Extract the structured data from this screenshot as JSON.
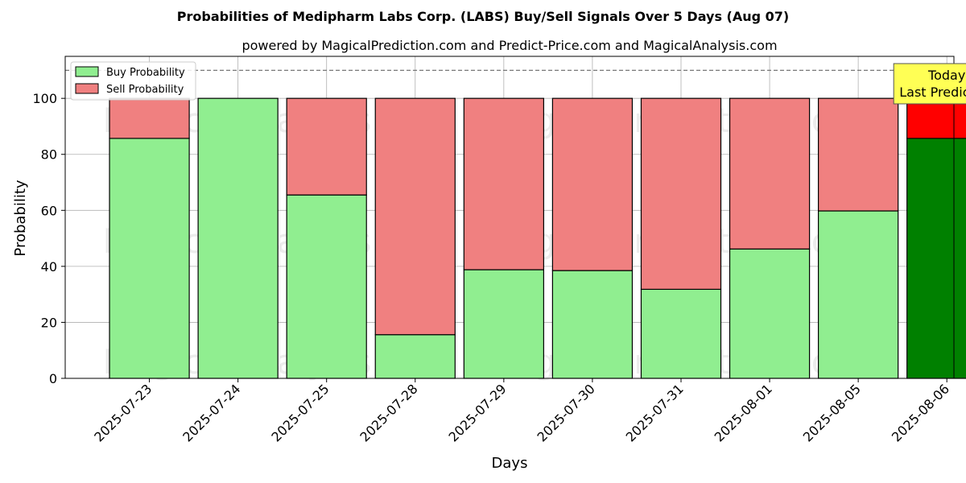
{
  "chart_data": {
    "type": "bar",
    "stacked": true,
    "title": "Probabilities of Medipharm Labs Corp. (LABS) Buy/Sell Signals Over 5 Days (Aug 07)",
    "subtitle": "powered by MagicalPrediction.com and Predict-Price.com and MagicalAnalysis.com",
    "xlabel": "Days",
    "ylabel": "Probability",
    "ylim": [
      0,
      115
    ],
    "yticks": [
      0,
      20,
      40,
      60,
      80,
      100
    ],
    "reference_line": 110,
    "grid": true,
    "legend_position": "top-left",
    "categories": [
      "2025-07-23",
      "2025-07-24",
      "2025-07-25",
      "2025-07-28",
      "2025-07-29",
      "2025-07-30",
      "2025-07-31",
      "2025-08-01",
      "2025-08-05",
      "2025-08-06"
    ],
    "series": [
      {
        "name": "Buy Probability",
        "color": "#90EE90",
        "values": [
          85.7,
          100,
          65.5,
          15.6,
          38.8,
          38.5,
          31.8,
          46.2,
          59.8,
          85.7
        ]
      },
      {
        "name": "Sell Probability",
        "color": "#F08080",
        "values": [
          14.3,
          0,
          34.5,
          84.4,
          61.2,
          61.5,
          68.2,
          53.8,
          40.2,
          14.3
        ]
      }
    ],
    "highlight": {
      "index": 9,
      "buy_color": "#008000",
      "sell_color": "#FF0000"
    },
    "annotation": {
      "lines": [
        "Today",
        "Last Prediction"
      ],
      "color": "#FFFF55"
    },
    "watermarks": [
      "MagicalAnalysis.com",
      "MagicalPrediction.com"
    ]
  }
}
